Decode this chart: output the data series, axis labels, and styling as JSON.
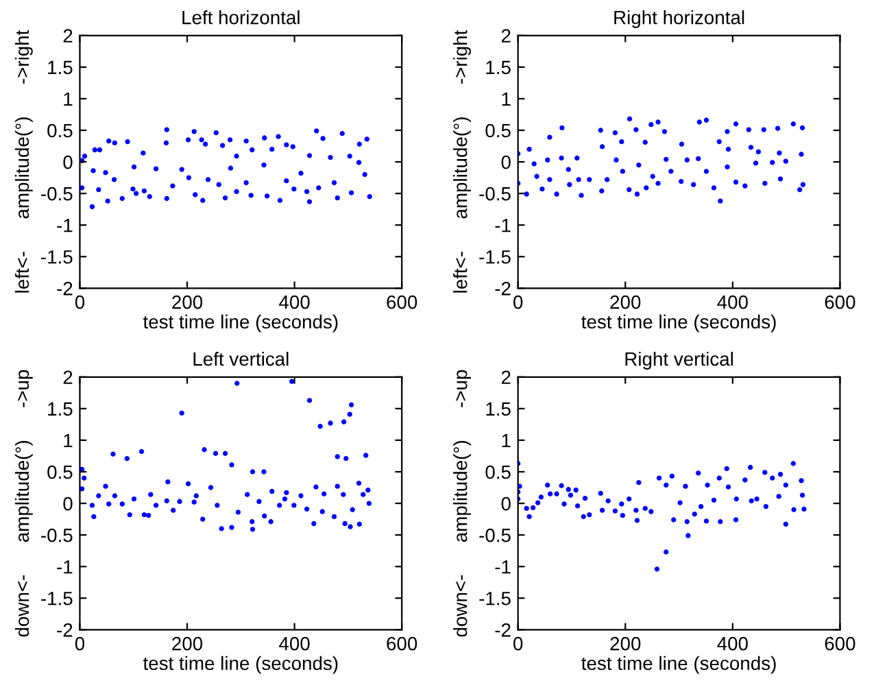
{
  "chart_data": [
    {
      "type": "scatter",
      "title": "Left horizontal",
      "xlabel": "test time line (seconds)",
      "ylabel": "left<-      amplitude(°)      ->right",
      "xlim": [
        0,
        600
      ],
      "ylim": [
        -2,
        2
      ],
      "xticks": [
        0,
        200,
        400,
        600
      ],
      "yticks": [
        -2,
        -1.5,
        -1,
        -0.5,
        0,
        0.5,
        1,
        1.5,
        2
      ],
      "marker": "circle",
      "series": [
        {
          "color": "#0000ff",
          "x": [
            4,
            9,
            4,
            23,
            25,
            28,
            35,
            37,
            48,
            52,
            54,
            64,
            65,
            79,
            89,
            99,
            101,
            105,
            118,
            120,
            130,
            142,
            161,
            162,
            162,
            173,
            190,
            202,
            203,
            213,
            215,
            227,
            229,
            234,
            239,
            254,
            259,
            266,
            271,
            280,
            281,
            292,
            292,
            310,
            310,
            321,
            319,
            343,
            344,
            349,
            358,
            370,
            373,
            385,
            385,
            397,
            399,
            412,
            423,
            428,
            428,
            441,
            445,
            453,
            467,
            474,
            480,
            489,
            503,
            506,
            520,
            521,
            531,
            535,
            540
          ],
          "values": [
            0.02,
            0.09,
            -0.41,
            -0.71,
            -0.14,
            0.19,
            -0.44,
            0.19,
            -0.17,
            -0.62,
            0.33,
            -0.28,
            0.3,
            -0.58,
            0.32,
            -0.43,
            -0.08,
            -0.5,
            0.14,
            -0.46,
            -0.55,
            -0.11,
            0.3,
            0.51,
            -0.58,
            -0.38,
            -0.12,
            0.35,
            -0.25,
            0.48,
            -0.52,
            0.35,
            -0.61,
            0.28,
            -0.28,
            0.46,
            -0.36,
            0.26,
            -0.57,
            0.35,
            -0.1,
            0.09,
            -0.47,
            0.33,
            -0.33,
            0.19,
            -0.53,
            -0.05,
            0.38,
            -0.54,
            0.2,
            0.4,
            -0.61,
            0.27,
            -0.3,
            0.24,
            -0.43,
            -0.18,
            -0.47,
            0.1,
            -0.63,
            0.49,
            -0.41,
            0.37,
            0.07,
            -0.33,
            -0.57,
            0.45,
            0.09,
            -0.49,
            -0.01,
            0.28,
            -0.2,
            0.36,
            -0.55
          ]
        }
      ]
    },
    {
      "type": "scatter",
      "title": "Right horizontal",
      "xlabel": "test time line (seconds)",
      "ylabel": "left<-      amplitude(°)      ->right",
      "xlim": [
        0,
        600
      ],
      "ylim": [
        -2,
        2
      ],
      "xticks": [
        0,
        200,
        400,
        600
      ],
      "yticks": [
        -2,
        -1.5,
        -1,
        -0.5,
        0,
        0.5,
        1,
        1.5,
        2
      ],
      "marker": "circle",
      "series": [
        {
          "color": "#0000ff",
          "x": [
            0,
            0,
            16,
            21,
            30,
            35,
            45,
            55,
            59,
            59,
            72,
            81,
            82,
            94,
            96,
            110,
            113,
            118,
            133,
            154,
            157,
            156,
            166,
            183,
            181,
            195,
            193,
            207,
            208,
            220,
            222,
            225,
            237,
            239,
            248,
            251,
            261,
            261,
            273,
            276,
            285,
            305,
            304,
            315,
            327,
            336,
            338,
            351,
            351,
            365,
            377,
            375,
            390,
            392,
            390,
            406,
            406,
            423,
            430,
            434,
            443,
            448,
            458,
            460,
            474,
            484,
            487,
            489,
            499,
            513,
            525,
            528,
            530,
            531
          ],
          "values": [
            0.13,
            -0.34,
            -0.51,
            0.2,
            -0.03,
            -0.23,
            -0.43,
            0.03,
            0.39,
            -0.28,
            -0.51,
            0.06,
            0.54,
            -0.12,
            -0.36,
            0.06,
            -0.28,
            -0.53,
            -0.28,
            0.5,
            0.24,
            -0.46,
            -0.28,
            0.03,
            0.46,
            -0.15,
            0.32,
            -0.44,
            0.68,
            0.51,
            -0.51,
            -0.05,
            0.31,
            -0.41,
            0.59,
            -0.23,
            0.63,
            -0.34,
            0.48,
            0.04,
            -0.15,
            0.28,
            -0.31,
            0.03,
            -0.36,
            0.05,
            0.63,
            0.66,
            -0.15,
            -0.41,
            -0.62,
            0.32,
            0.48,
            0.2,
            -0.08,
            0.6,
            -0.32,
            -0.38,
            0.51,
            0.23,
            -0.02,
            0.16,
            0.51,
            -0.34,
            -0.01,
            0.53,
            0.14,
            -0.27,
            0.01,
            0.6,
            -0.44,
            0.12,
            0.54,
            -0.36
          ]
        }
      ]
    },
    {
      "type": "scatter",
      "title": "Left vertical",
      "xlabel": "test time line (seconds)",
      "ylabel": "down<-      amplitude(°)      ->up",
      "xlim": [
        0,
        600
      ],
      "ylim": [
        -2,
        2
      ],
      "xticks": [
        0,
        200,
        400,
        600
      ],
      "yticks": [
        -2,
        -1.5,
        -1,
        -0.5,
        0,
        0.5,
        1,
        1.5,
        2
      ],
      "marker": "circle",
      "series": [
        {
          "color": "#0000ff",
          "x": [
            4,
            4,
            8,
            23,
            26,
            35,
            48,
            54,
            62,
            65,
            79,
            88,
            93,
            101,
            115,
            120,
            128,
            132,
            142,
            162,
            164,
            174,
            186,
            190,
            202,
            213,
            217,
            229,
            232,
            244,
            253,
            256,
            264,
            271,
            283,
            283,
            293,
            295,
            312,
            321,
            322,
            322,
            334,
            343,
            344,
            356,
            358,
            372,
            382,
            385,
            395,
            399,
            412,
            423,
            428,
            436,
            440,
            448,
            452,
            455,
            467,
            474,
            480,
            480,
            491,
            492,
            496,
            494,
            503,
            504,
            506,
            508,
            520,
            521,
            528,
            533,
            537,
            539
          ],
          "values": [
            0.54,
            0.23,
            0.4,
            -0.03,
            -0.21,
            0.12,
            0.27,
            -0.01,
            0.78,
            0.12,
            -0.01,
            0.71,
            -0.18,
            0.07,
            0.82,
            -0.18,
            -0.19,
            0.14,
            -0.03,
            0.04,
            0.34,
            -0.11,
            0.03,
            1.43,
            0.31,
            0.02,
            0.12,
            -0.25,
            0.85,
            0.25,
            0.79,
            -0.03,
            -0.4,
            0.79,
            0.61,
            -0.38,
            1.9,
            -0.14,
            0.14,
            -0.29,
            -0.41,
            0.5,
            0.03,
            0.5,
            -0.2,
            -0.29,
            0.19,
            -0.03,
            0.07,
            0.17,
            1.93,
            -0.03,
            0.12,
            -0.09,
            1.63,
            -0.32,
            0.26,
            1.22,
            -0.13,
            0.15,
            1.27,
            -0.21,
            0.74,
            0.27,
            0.14,
            1.29,
            0.71,
            -0.32,
            1.41,
            -0.37,
            1.56,
            -0.1,
            0.32,
            -0.33,
            0.14,
            0.76,
            0.21,
            0.0
          ]
        }
      ]
    },
    {
      "type": "scatter",
      "title": "Right vertical",
      "xlabel": "test time line (seconds)",
      "ylabel": "down<-      amplitude(°)      ->up",
      "xlim": [
        0,
        600
      ],
      "ylim": [
        -2,
        2
      ],
      "xticks": [
        0,
        200,
        400,
        600
      ],
      "yticks": [
        -2,
        -1.5,
        -1,
        -0.5,
        0,
        0.5,
        1,
        1.5,
        2
      ],
      "marker": "circle",
      "series": [
        {
          "color": "#0000ff",
          "x": [
            0,
            0,
            3,
            0,
            16,
            21,
            28,
            37,
            43,
            55,
            60,
            72,
            81,
            86,
            94,
            98,
            108,
            111,
            122,
            125,
            133,
            154,
            157,
            168,
            181,
            195,
            193,
            207,
            220,
            222,
            225,
            237,
            248,
            259,
            263,
            276,
            276,
            287,
            290,
            302,
            312,
            315,
            317,
            329,
            336,
            341,
            353,
            351,
            365,
            375,
            377,
            389,
            392,
            406,
            407,
            423,
            433,
            435,
            445,
            460,
            462,
            474,
            486,
            489,
            499,
            499,
            513,
            514,
            528,
            530,
            533
          ],
          "values": [
            0.63,
            0.18,
            0.27,
            0.07,
            -0.08,
            -0.21,
            -0.07,
            0.01,
            0.1,
            0.29,
            0.15,
            0.15,
            0.28,
            -0.01,
            0.22,
            0.13,
            0.21,
            -0.04,
            -0.21,
            0.08,
            -0.18,
            0.16,
            -0.11,
            0.04,
            -0.12,
            -0.19,
            -0.01,
            0.07,
            -0.11,
            -0.27,
            0.33,
            -0.08,
            -0.13,
            -1.04,
            0.4,
            -0.77,
            0.29,
            0.43,
            -0.26,
            0.01,
            0.27,
            -0.29,
            -0.51,
            -0.17,
            0.48,
            -0.05,
            0.29,
            -0.28,
            0.05,
            0.4,
            -0.29,
            0.55,
            0.26,
            -0.26,
            0.07,
            0.37,
            0.57,
            0.04,
            0.07,
            0.49,
            -0.05,
            0.4,
            0.11,
            0.46,
            -0.33,
            0.29,
            0.63,
            -0.1,
            0.36,
            0.13,
            -0.09
          ]
        }
      ]
    }
  ]
}
